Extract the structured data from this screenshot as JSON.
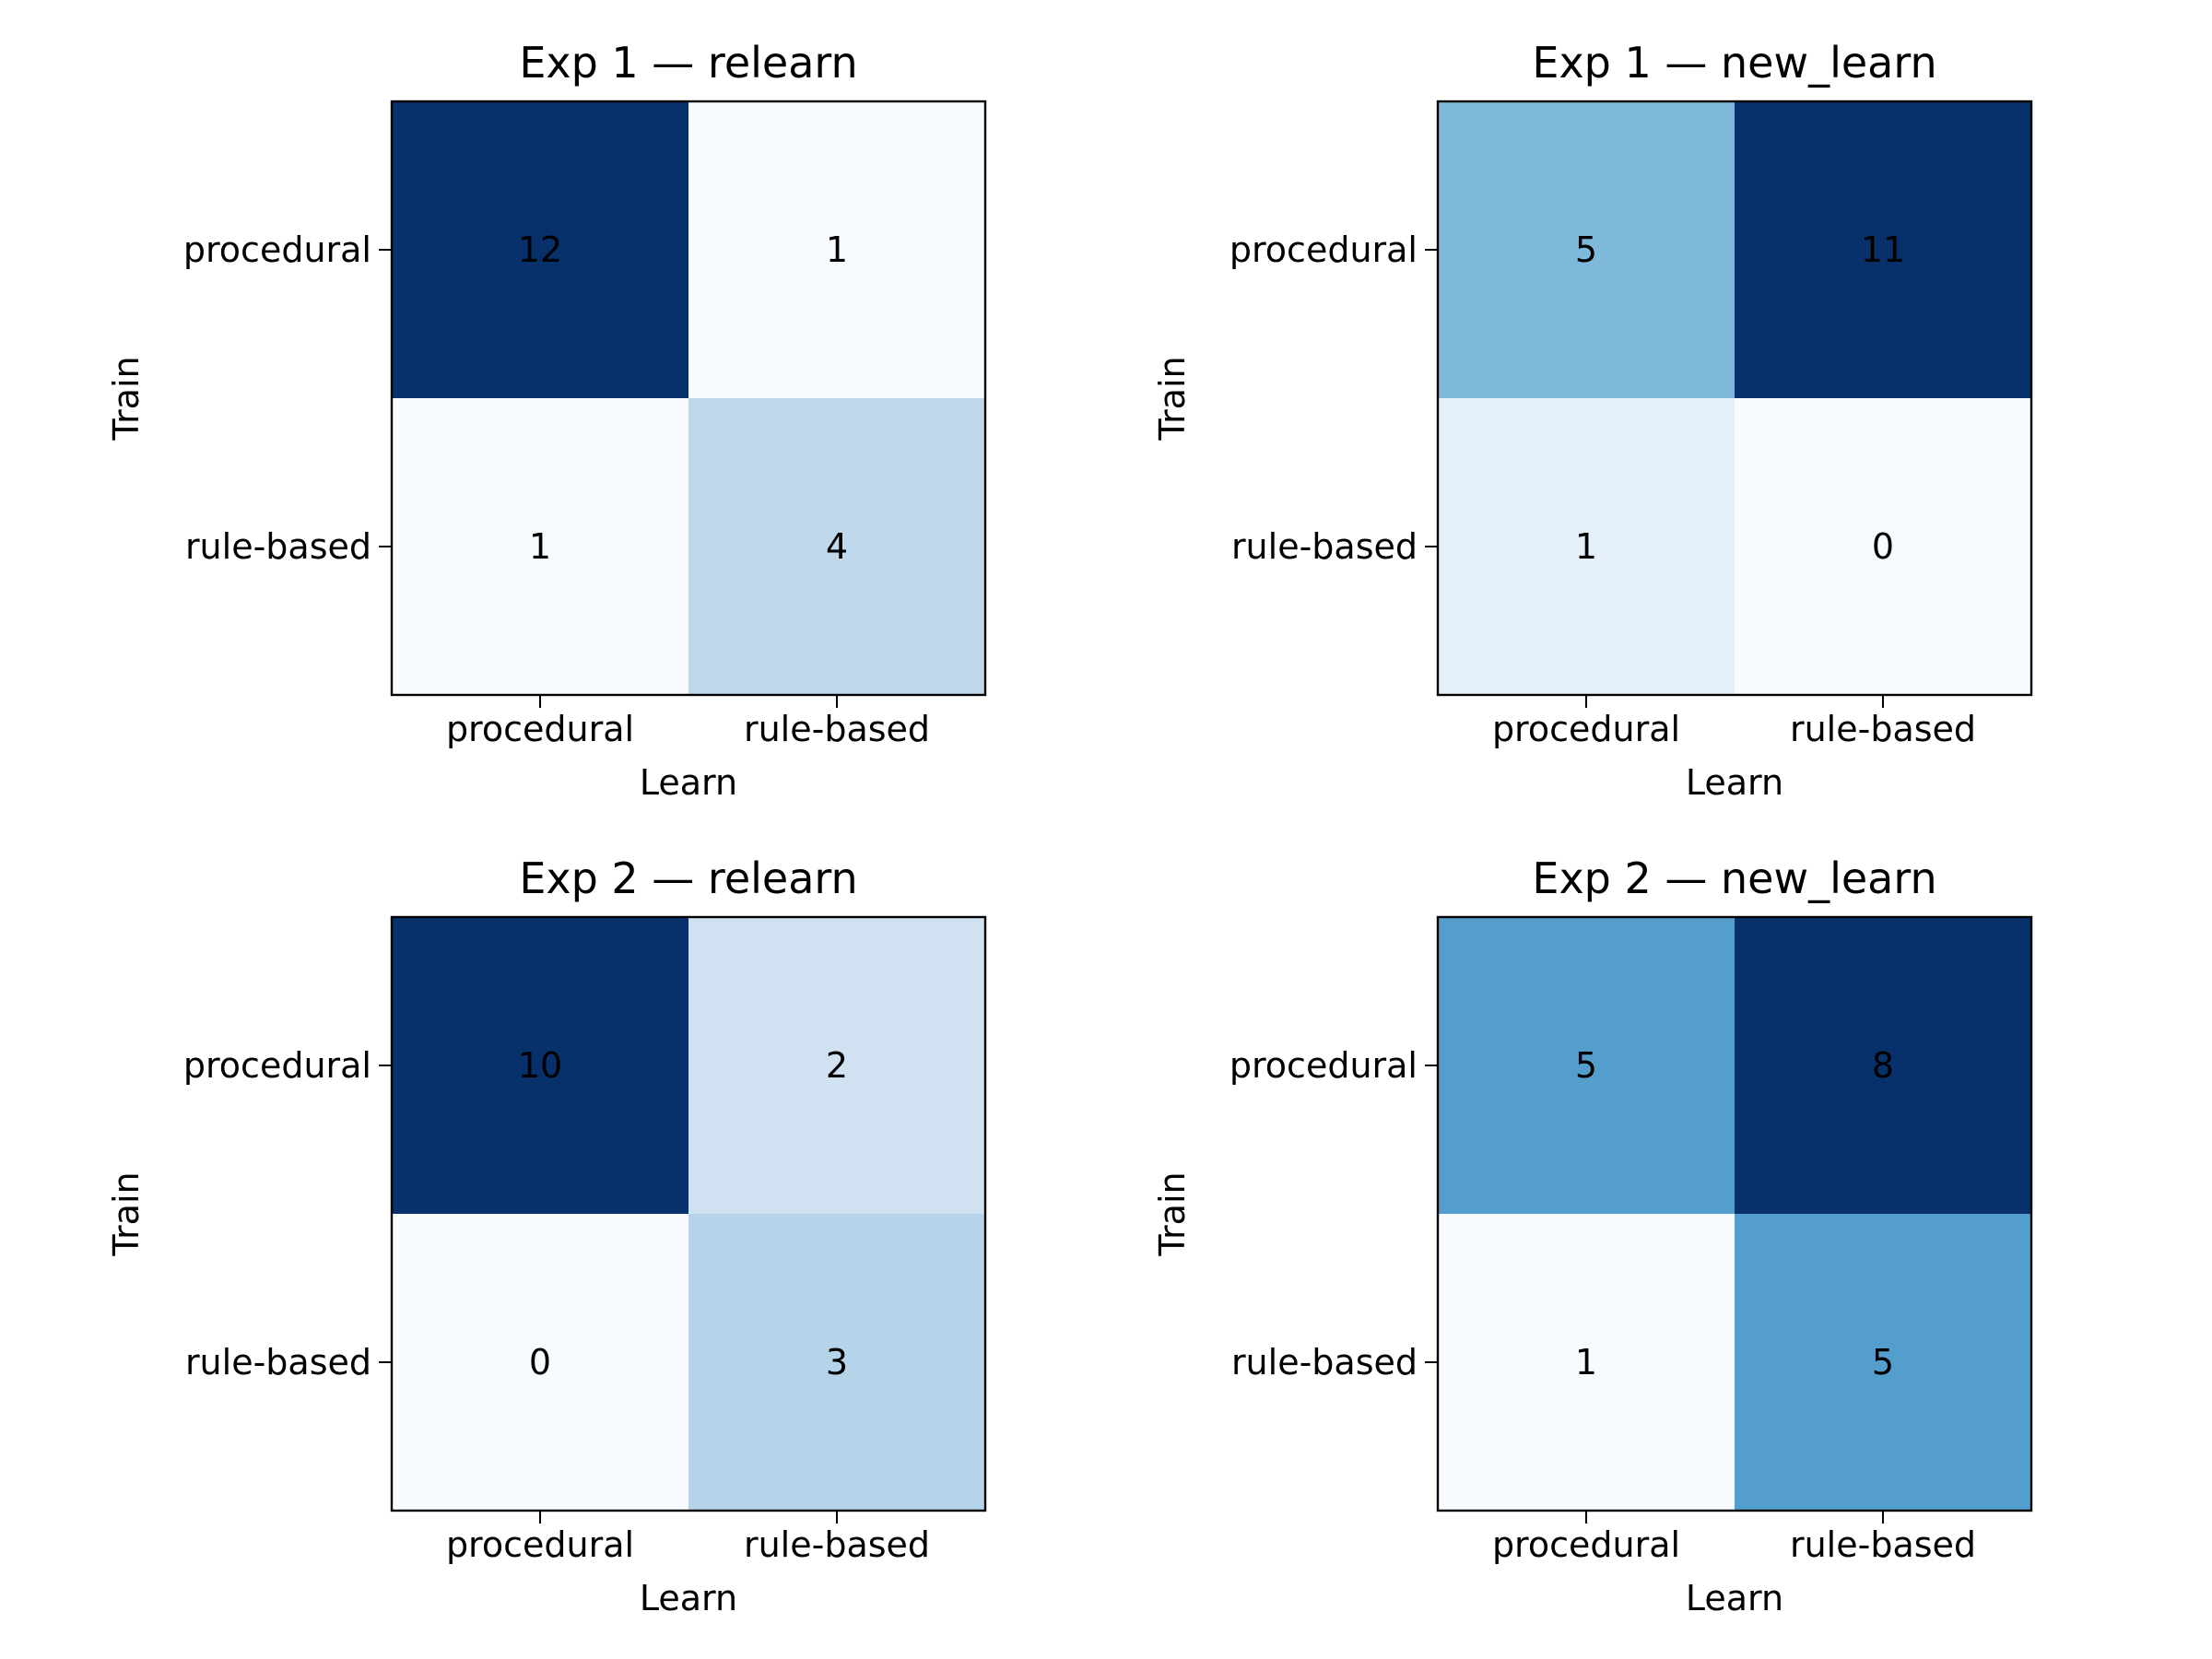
{
  "chart_data": [
    {
      "type": "heatmap",
      "title": "Exp 1 — relearn",
      "xlabel": "Learn",
      "ylabel": "Train",
      "x_categories": [
        "procedural",
        "rule-based"
      ],
      "y_categories": [
        "procedural",
        "rule-based"
      ],
      "values": [
        [
          12,
          1
        ],
        [
          1,
          4
        ]
      ]
    },
    {
      "type": "heatmap",
      "title": "Exp 1 — new_learn",
      "xlabel": "Learn",
      "ylabel": "Train",
      "x_categories": [
        "procedural",
        "rule-based"
      ],
      "y_categories": [
        "procedural",
        "rule-based"
      ],
      "values": [
        [
          5,
          11
        ],
        [
          1,
          0
        ]
      ]
    },
    {
      "type": "heatmap",
      "title": "Exp 2 — relearn",
      "xlabel": "Learn",
      "ylabel": "Train",
      "x_categories": [
        "procedural",
        "rule-based"
      ],
      "y_categories": [
        "procedural",
        "rule-based"
      ],
      "values": [
        [
          10,
          2
        ],
        [
          0,
          3
        ]
      ]
    },
    {
      "type": "heatmap",
      "title": "Exp 2 — new_learn",
      "xlabel": "Learn",
      "ylabel": "Train",
      "x_categories": [
        "procedural",
        "rule-based"
      ],
      "y_categories": [
        "procedural",
        "rule-based"
      ],
      "values": [
        [
          5,
          8
        ],
        [
          1,
          5
        ]
      ]
    }
  ],
  "colormap": {
    "name": "Blues",
    "low": "#f7fbff",
    "high": "#08306b",
    "text_color": "#000000"
  }
}
